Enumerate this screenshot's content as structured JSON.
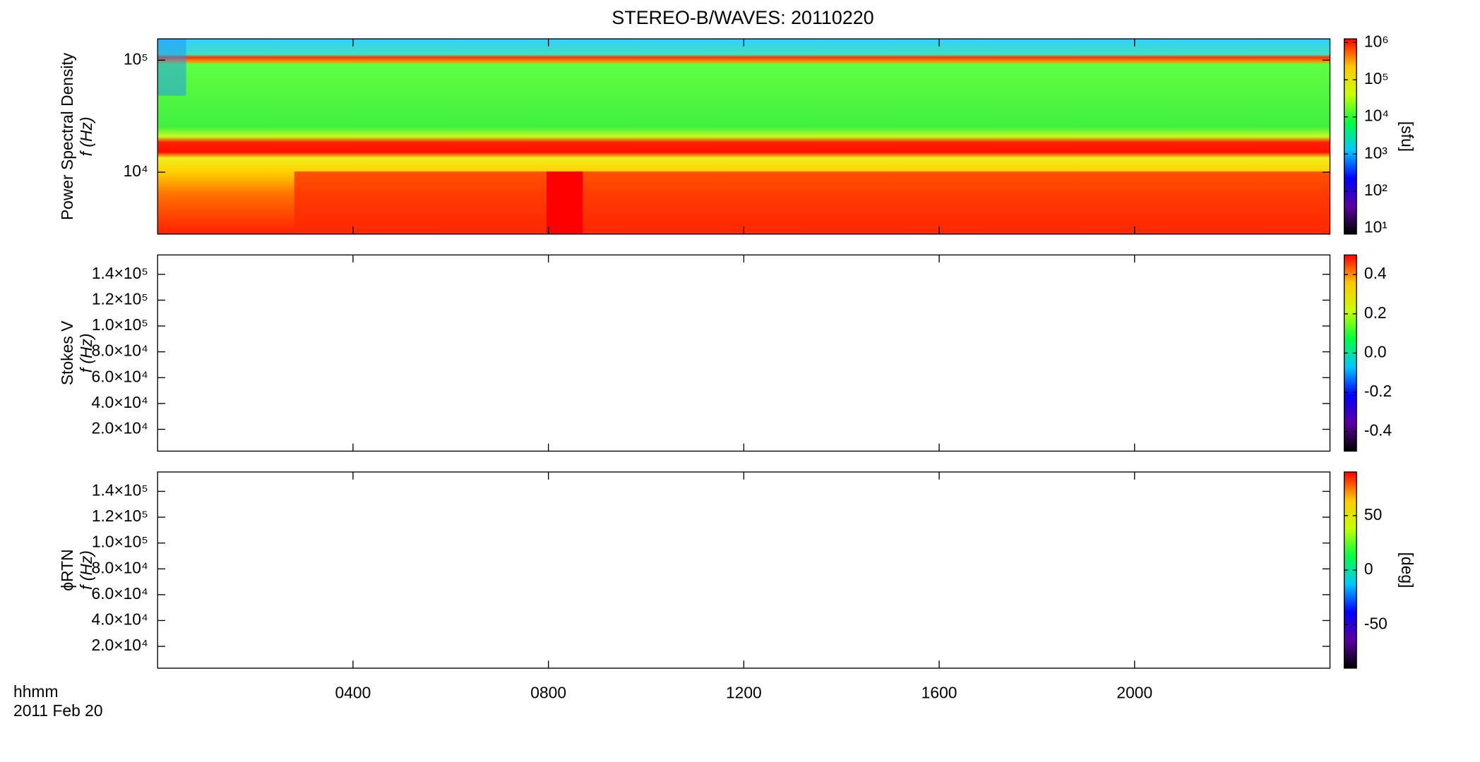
{
  "title": "STEREO-B/WAVES: 20110220",
  "x_label_lines": [
    "hhmm",
    "2011 Feb 20"
  ],
  "xaxis": {
    "xlim": [
      0,
      24
    ],
    "xticks": [
      {
        "value": 4,
        "label": "0400"
      },
      {
        "value": 8,
        "label": "0800"
      },
      {
        "value": 12,
        "label": "1200"
      },
      {
        "value": 16,
        "label": "1600"
      },
      {
        "value": 20,
        "label": "2000"
      }
    ]
  },
  "colormap": [
    "#000000",
    "#5a00a0",
    "#0000ff",
    "#00c8ff",
    "#00ff40",
    "#c8ff00",
    "#ffc800",
    "#ff0000"
  ],
  "chart_data": [
    {
      "type": "heatmap",
      "ylabel": [
        "Power Spectral Density",
        "f (Hz)"
      ],
      "ylog": true,
      "ylim": [
        2800,
        155000
      ],
      "yticks": [
        {
          "value": 10000,
          "label": "10⁴"
        },
        {
          "value": 100000,
          "label": "10⁵"
        }
      ],
      "colorbar": {
        "log": true,
        "lim": [
          7,
          1260000
        ],
        "label": "[sfu]",
        "ticks": [
          {
            "value": 10,
            "label": "10¹"
          },
          {
            "value": 100,
            "label": "10²"
          },
          {
            "value": 1000,
            "label": "10³"
          },
          {
            "value": 10000,
            "label": "10⁴"
          },
          {
            "value": 100000,
            "label": "10⁵"
          },
          {
            "value": 1000000,
            "label": "10⁶"
          }
        ]
      }
    },
    {
      "type": "heatmap",
      "ylabel": [
        "Stokes V",
        "f (Hz)"
      ],
      "ylog": false,
      "ylim": [
        3100,
        155000
      ],
      "yticks": [
        {
          "value": 20000,
          "label": "2.0×10⁴"
        },
        {
          "value": 40000,
          "label": "4.0×10⁴"
        },
        {
          "value": 60000,
          "label": "6.0×10⁴"
        },
        {
          "value": 80000,
          "label": "8.0×10⁴"
        },
        {
          "value": 100000,
          "label": "1.0×10⁵"
        },
        {
          "value": 120000,
          "label": "1.2×10⁵"
        },
        {
          "value": 140000,
          "label": "1.4×10⁵"
        }
      ],
      "colorbar": {
        "log": false,
        "lim": [
          -0.5,
          0.5
        ],
        "ticks": [
          {
            "value": -0.4,
            "label": "-0.4"
          },
          {
            "value": -0.2,
            "label": "-0.2"
          },
          {
            "value": 0,
            "label": "0.0"
          },
          {
            "value": 0.2,
            "label": "0.2"
          },
          {
            "value": 0.4,
            "label": "0.4"
          }
        ]
      }
    },
    {
      "type": "heatmap",
      "ylabel": [
        "ϕRTN",
        "f (Hz)"
      ],
      "ylog": false,
      "ylim": [
        3100,
        155000
      ],
      "yticks": [
        {
          "value": 20000,
          "label": "2.0×10⁴"
        },
        {
          "value": 40000,
          "label": "4.0×10⁴"
        },
        {
          "value": 60000,
          "label": "6.0×10⁴"
        },
        {
          "value": 80000,
          "label": "8.0×10⁴"
        },
        {
          "value": 100000,
          "label": "1.0×10⁵"
        },
        {
          "value": 120000,
          "label": "1.2×10⁵"
        },
        {
          "value": 140000,
          "label": "1.4×10⁵"
        }
      ],
      "colorbar": {
        "log": false,
        "lim": [
          -90,
          90
        ],
        "label": "[deg]",
        "ticks": [
          -50,
          0,
          50
        ]
      }
    }
  ]
}
